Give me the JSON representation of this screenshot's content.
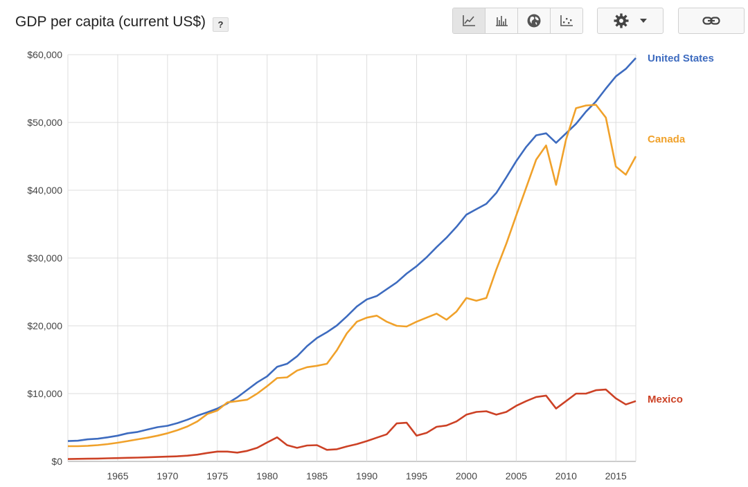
{
  "header": {
    "title": "GDP per capita (current US$)",
    "help_label": "?"
  },
  "toolbar": {
    "chart_types": [
      {
        "name": "line-chart-icon",
        "active": true
      },
      {
        "name": "bar-chart-icon",
        "active": false
      },
      {
        "name": "map-globe-icon",
        "active": false
      },
      {
        "name": "scatter-chart-icon",
        "active": false
      }
    ],
    "settings_icon": "gear-icon",
    "dropdown_icon": "caret-down-icon",
    "share_icon": "link-icon"
  },
  "colors": {
    "united_states": "#3d6bbf",
    "canada": "#f0a12a",
    "mexico": "#cc4125",
    "grid": "#dddddd",
    "axis": "#999999"
  },
  "chart_data": {
    "type": "line",
    "title": "GDP per capita (current US$)",
    "xlabel": "",
    "ylabel": "",
    "xlim": [
      1960,
      2017
    ],
    "ylim": [
      0,
      60000
    ],
    "x_ticks": [
      1965,
      1970,
      1975,
      1980,
      1985,
      1990,
      1995,
      2000,
      2005,
      2010,
      2015
    ],
    "y_ticks": [
      0,
      10000,
      20000,
      30000,
      40000,
      50000,
      60000
    ],
    "y_tick_labels": [
      "$0",
      "$10,000",
      "$20,000",
      "$30,000",
      "$40,000",
      "$50,000",
      "$60,000"
    ],
    "grid": true,
    "legend": "inline-right",
    "x": [
      1960,
      1961,
      1962,
      1963,
      1964,
      1965,
      1966,
      1967,
      1968,
      1969,
      1970,
      1971,
      1972,
      1973,
      1974,
      1975,
      1976,
      1977,
      1978,
      1979,
      1980,
      1981,
      1982,
      1983,
      1984,
      1985,
      1986,
      1987,
      1988,
      1989,
      1990,
      1991,
      1992,
      1993,
      1994,
      1995,
      1996,
      1997,
      1998,
      1999,
      2000,
      2001,
      2002,
      2003,
      2004,
      2005,
      2006,
      2007,
      2008,
      2009,
      2010,
      2011,
      2012,
      2013,
      2014,
      2015,
      2016,
      2017
    ],
    "series": [
      {
        "name": "United States",
        "color_key": "united_states",
        "values": [
          3000,
          3050,
          3250,
          3350,
          3550,
          3800,
          4150,
          4350,
          4700,
          5050,
          5250,
          5650,
          6150,
          6750,
          7250,
          7800,
          8550,
          9450,
          10550,
          11650,
          12550,
          13950,
          14400,
          15500,
          17000,
          18200,
          19050,
          20050,
          21400,
          22850,
          23900,
          24400,
          25400,
          26400,
          27700,
          28800,
          30100,
          31600,
          33000,
          34600,
          36400,
          37200,
          38000,
          39600,
          41900,
          44300,
          46400,
          48100,
          48400,
          47000,
          48400,
          49800,
          51600,
          53100,
          55000,
          56800,
          57900,
          59500
        ]
      },
      {
        "name": "Canada",
        "color_key": "canada",
        "values": [
          2250,
          2250,
          2300,
          2400,
          2550,
          2750,
          3000,
          3250,
          3500,
          3800,
          4150,
          4600,
          5150,
          5900,
          7000,
          7500,
          8700,
          8900,
          9100,
          10000,
          11100,
          12300,
          12400,
          13400,
          13900,
          14100,
          14400,
          16400,
          18900,
          20600,
          21200,
          21500,
          20600,
          20000,
          19900,
          20600,
          21200,
          21800,
          20900,
          22100,
          24100,
          23700,
          24100,
          28300,
          32100,
          36300,
          40400,
          44500,
          46600,
          40800,
          47500,
          52100,
          52500,
          52600,
          50700,
          43500,
          42300,
          45000
        ]
      },
      {
        "name": "Mexico",
        "color_key": "mexico",
        "values": [
          350,
          380,
          400,
          420,
          460,
          490,
          530,
          560,
          600,
          650,
          700,
          750,
          850,
          1000,
          1250,
          1450,
          1450,
          1300,
          1550,
          2000,
          2800,
          3550,
          2400,
          2000,
          2350,
          2400,
          1700,
          1800,
          2200,
          2550,
          3000,
          3500,
          4000,
          5600,
          5700,
          3800,
          4200,
          5100,
          5300,
          5900,
          6900,
          7300,
          7400,
          6900,
          7300,
          8200,
          8900,
          9500,
          9700,
          7800,
          8900,
          10000,
          10000,
          10500,
          10600,
          9300,
          8400,
          8900
        ]
      }
    ]
  }
}
